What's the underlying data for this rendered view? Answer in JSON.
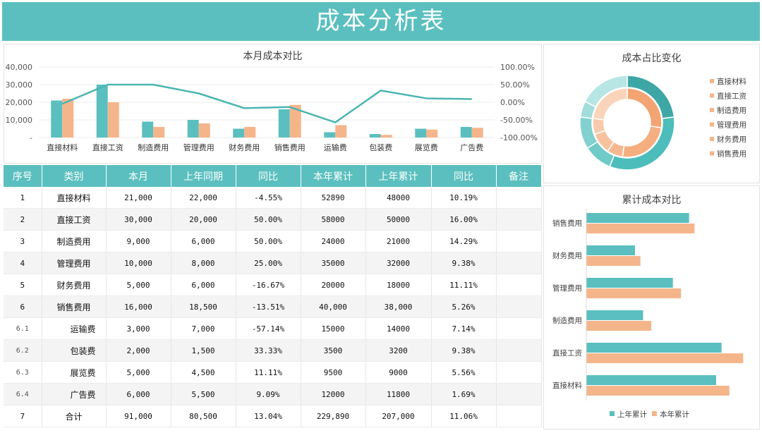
{
  "page": {
    "title": "成本分析表"
  },
  "chart_data": [
    {
      "type": "bar",
      "title": "本月成本对比",
      "categories": [
        "直接材料",
        "直接工资",
        "制造费用",
        "管理费用",
        "财务费用",
        "销售费用",
        "运输费",
        "包装费",
        "展览费",
        "广告费"
      ],
      "series": [
        {
          "values": [
            21000,
            30000,
            9000,
            10000,
            5000,
            16000,
            3000,
            2000,
            5000,
            6000
          ],
          "color": "#5bbfbf"
        },
        {
          "values": [
            22000,
            20000,
            6000,
            8000,
            6000,
            18500,
            7000,
            1500,
            4500,
            5500
          ],
          "color": "#f5b58b"
        }
      ],
      "line_series": {
        "values": [
          -4.55,
          50.0,
          50.0,
          25.0,
          -16.67,
          -13.51,
          -57.14,
          33.33,
          11.11,
          9.09
        ],
        "color": "#4bb5b2"
      },
      "ylim": [
        0,
        40000
      ],
      "y_ticks": [
        "40,000",
        "30,000",
        "20,000",
        "10,000",
        "-"
      ],
      "y2lim": [
        -100,
        100
      ],
      "y2_ticks": [
        "100.00%",
        "50.00%",
        "0.00%",
        "-50.00%",
        "-100.00%"
      ]
    },
    {
      "type": "pie",
      "title": "成本占比变化",
      "legend": [
        "直接材料",
        "直接工资",
        "制造费用",
        "管理费用",
        "财务费用",
        "销售费用"
      ],
      "outer": {
        "values": [
          21000,
          30000,
          9000,
          10000,
          5000,
          16000
        ],
        "colors": [
          "#3ea7a6",
          "#4dbdbb",
          "#6fcac8",
          "#82d1cf",
          "#a2dddb",
          "#b8e6e4"
        ]
      },
      "inner": {
        "values": [
          22000,
          20000,
          6000,
          8000,
          6000,
          18500
        ],
        "colors": [
          "#f2a472",
          "#f4ae80",
          "#f6b98f",
          "#f7c29d",
          "#f8cbac",
          "#f9d4ba"
        ]
      }
    },
    {
      "type": "bar",
      "orientation": "horizontal",
      "title": "累计成本对比",
      "categories": [
        "销售费用",
        "财务费用",
        "管理费用",
        "制造费用",
        "直接工资",
        "直接材料"
      ],
      "series": [
        {
          "name": "上年累计",
          "values": [
            38000,
            18000,
            32000,
            21000,
            50000,
            48000
          ],
          "color": "#5bbfbf"
        },
        {
          "name": "本年累计",
          "values": [
            40000,
            20000,
            35000,
            24000,
            58000,
            52890
          ],
          "color": "#f5b58b"
        }
      ],
      "xlim": [
        0,
        60000
      ],
      "legend_position": "bottom"
    }
  ],
  "table": {
    "headers": [
      "序号",
      "类别",
      "本月",
      "上年同期",
      "同比",
      "本年累计",
      "上年累计",
      "同比",
      "备注"
    ],
    "rows": [
      [
        "1",
        "直接材料",
        "21,000",
        "22,000",
        "-4.55%",
        "52890",
        "48000",
        "10.19%",
        ""
      ],
      [
        "2",
        "直接工资",
        "30,000",
        "20,000",
        "50.00%",
        "58000",
        "50000",
        "16.00%",
        ""
      ],
      [
        "3",
        "制造费用",
        "9,000",
        "6,000",
        "50.00%",
        "24000",
        "21000",
        "14.29%",
        ""
      ],
      [
        "4",
        "管理费用",
        "10,000",
        "8,000",
        "25.00%",
        "35000",
        "32000",
        "9.38%",
        ""
      ],
      [
        "5",
        "财务费用",
        "5,000",
        "6,000",
        "-16.67%",
        "20000",
        "18000",
        "11.11%",
        ""
      ],
      [
        "6",
        "销售费用",
        "16,000",
        "18,500",
        "-13.51%",
        "40,000",
        "38,000",
        "5.26%",
        ""
      ],
      [
        "6.1",
        "运输费",
        "3,000",
        "7,000",
        "-57.14%",
        "15000",
        "14000",
        "7.14%",
        ""
      ],
      [
        "6.2",
        "包装费",
        "2,000",
        "1,500",
        "33.33%",
        "3500",
        "3200",
        "9.38%",
        ""
      ],
      [
        "6.3",
        "展览费",
        "5,000",
        "4,500",
        "11.11%",
        "9500",
        "9000",
        "5.56%",
        ""
      ],
      [
        "6.4",
        "广告费",
        "6,000",
        "5,500",
        "9.09%",
        "12000",
        "11800",
        "1.69%",
        ""
      ],
      [
        "7",
        "合计",
        "91,000",
        "80,500",
        "13.04%",
        "229,890",
        "207,000",
        "11.06%",
        ""
      ]
    ]
  }
}
